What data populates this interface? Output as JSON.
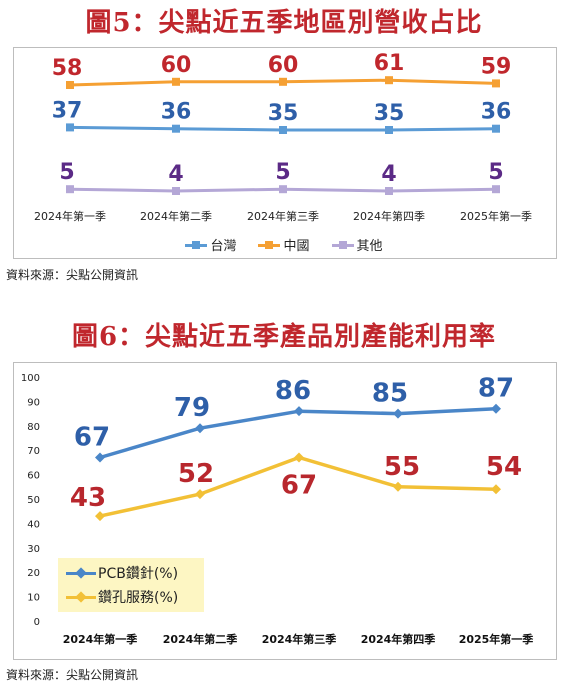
{
  "chart1": {
    "title": "圖5：尖點近五季地區別營收占比",
    "source": "資料來源：尖點公開資訊",
    "chart_data": {
      "type": "line",
      "categories": [
        "2024年第一季",
        "2024年第二季",
        "2024年第三季",
        "2024年第四季",
        "2025年第一季"
      ],
      "series": [
        {
          "name": "台灣",
          "values": [
            37,
            36,
            35,
            35,
            36
          ],
          "color": "#5b9bd5",
          "label_color": "#2e5fa8"
        },
        {
          "name": "中國",
          "values": [
            58,
            60,
            60,
            61,
            59
          ],
          "color": "#f5a033",
          "label_color": "#c0272d"
        },
        {
          "name": "其他",
          "values": [
            5,
            4,
            5,
            4,
            5
          ],
          "color": "#b4a7d6",
          "label_color": "#5b2a86"
        }
      ],
      "legend": "bottom",
      "grid": false
    }
  },
  "chart2": {
    "title": "圖6：尖點近五季產品別產能利用率",
    "source": "資料來源：尖點公開資訊",
    "chart_data": {
      "type": "line",
      "categories": [
        "2024年第一季",
        "2024年第二季",
        "2024年第三季",
        "2024年第四季",
        "2025年第一季"
      ],
      "series": [
        {
          "name": "PCB鑽針(%)",
          "values": [
            67,
            79,
            86,
            85,
            87
          ],
          "color": "#4a86c8",
          "label_color": "#2e5fa8"
        },
        {
          "name": "鑽孔服務(%)",
          "values": [
            43,
            52,
            67,
            55,
            54
          ],
          "color": "#f2c036",
          "label_color": "#b8272d"
        }
      ],
      "ylim": [
        0,
        100
      ],
      "yticks": [
        0,
        10,
        20,
        30,
        40,
        50,
        60,
        70,
        80,
        90,
        100
      ],
      "legend": "bottom-left",
      "grid": false
    }
  }
}
